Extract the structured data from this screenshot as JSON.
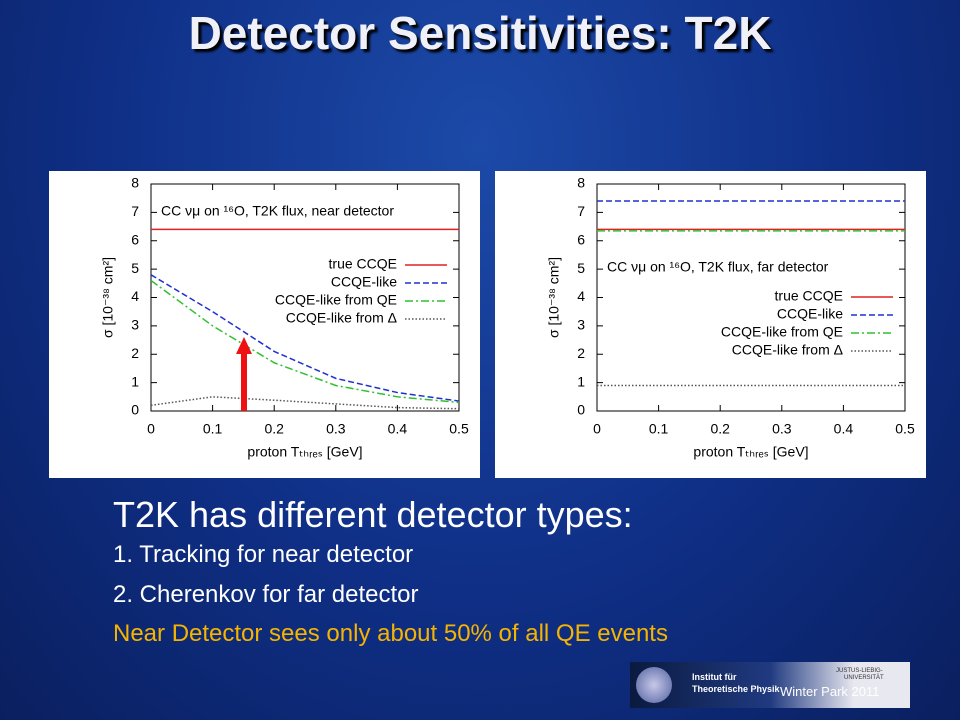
{
  "slide": {
    "title": "Detector Sensitivities: T2K",
    "heading": "T2K has different detector types:",
    "items": [
      "1. Tracking for near detector",
      "2. Cherenkov for far detector"
    ],
    "highlight": "Near Detector sees only about 50% of all QE events",
    "footer": "Winter Park 2011",
    "logo": [
      "Institut für",
      "Theoretische Physik",
      "JUSTUS-LIEBIG-",
      "UNIVERSITÄT"
    ]
  },
  "chart_data": [
    {
      "type": "line",
      "annotation": "CC νμ on ¹⁶O, T2K flux, near detector",
      "x_label": "proton Tₜₕᵣₑₛ [GeV]",
      "y_label": "σ [10⁻³⁸ cm²]",
      "x": [
        0,
        0.1,
        0.2,
        0.3,
        0.4,
        0.5
      ],
      "series": [
        {
          "name": "true CCQE",
          "color": "#e02020",
          "style": "solid",
          "values": [
            6.4,
            6.4,
            6.4,
            6.4,
            6.4,
            6.4
          ]
        },
        {
          "name": "CCQE-like",
          "color": "#2030d0",
          "style": "dashed",
          "values": [
            4.8,
            3.5,
            2.1,
            1.15,
            0.65,
            0.35
          ]
        },
        {
          "name": "CCQE-like from QE",
          "color": "#30c030",
          "style": "dashdot",
          "values": [
            4.6,
            3.0,
            1.7,
            0.9,
            0.5,
            0.3
          ]
        },
        {
          "name": "CCQE-like from Δ",
          "color": "#555555",
          "style": "dotted",
          "values": [
            0.2,
            0.5,
            0.38,
            0.25,
            0.12,
            0.08
          ]
        }
      ],
      "xlim": [
        0,
        0.5
      ],
      "ylim": [
        0,
        8
      ],
      "xticks": [
        0,
        0.1,
        0.2,
        0.3,
        0.4,
        0.5
      ],
      "yticks": [
        0,
        1,
        2,
        3,
        4,
        5,
        6,
        7,
        8
      ],
      "legend": "center right"
    },
    {
      "type": "line",
      "annotation": "CC νμ on ¹⁶O, T2K flux, far detector",
      "x_label": "proton Tₜₕᵣₑₛ [GeV]",
      "y_label": "σ [10⁻³⁸ cm²]",
      "x": [
        0,
        0.1,
        0.2,
        0.3,
        0.4,
        0.5
      ],
      "series": [
        {
          "name": "true CCQE",
          "color": "#e02020",
          "style": "solid",
          "values": [
            6.4,
            6.4,
            6.4,
            6.4,
            6.4,
            6.4
          ]
        },
        {
          "name": "CCQE-like",
          "color": "#2030d0",
          "style": "dashed",
          "values": [
            7.4,
            7.4,
            7.4,
            7.4,
            7.4,
            7.4
          ]
        },
        {
          "name": "CCQE-like from QE",
          "color": "#30c030",
          "style": "dashdot",
          "values": [
            6.35,
            6.35,
            6.35,
            6.35,
            6.35,
            6.35
          ]
        },
        {
          "name": "CCQE-like from Δ",
          "color": "#555555",
          "style": "dotted",
          "values": [
            0.9,
            0.9,
            0.9,
            0.9,
            0.9,
            0.9
          ]
        }
      ],
      "xlim": [
        0,
        0.5
      ],
      "ylim": [
        0,
        8
      ],
      "xticks": [
        0,
        0.1,
        0.2,
        0.3,
        0.4,
        0.5
      ],
      "yticks": [
        0,
        1,
        2,
        3,
        4,
        5,
        6,
        7,
        8
      ],
      "legend": "center right"
    }
  ]
}
